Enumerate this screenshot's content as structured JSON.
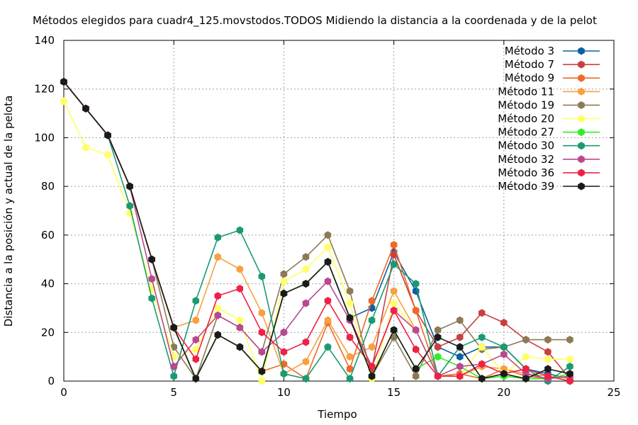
{
  "chart_data": {
    "type": "line",
    "title": "Métodos elegidos para cuadr4_125.movstodos.TODOS Midiendo la distancia a la coordenada y de la pelot",
    "xlabel": "Tiempo",
    "ylabel": "Distancia a la posición y actual de la pelota",
    "xlim": [
      0,
      25
    ],
    "ylim": [
      0,
      140
    ],
    "xticks": [
      0,
      5,
      10,
      15,
      20,
      25
    ],
    "yticks": [
      0,
      20,
      40,
      60,
      80,
      100,
      120,
      140
    ],
    "grid": true,
    "legend_position": "top-right",
    "x": [
      0,
      1,
      2,
      3,
      4,
      5,
      6,
      7,
      8,
      9,
      10,
      11,
      12,
      13,
      14,
      15,
      16,
      17,
      18,
      19,
      20,
      21,
      22,
      23
    ],
    "series": [
      {
        "name": "Método 3",
        "color": "#0b5fa5",
        "values": [
          123,
          112,
          101,
          80,
          50,
          22,
          1,
          19,
          14,
          4,
          36,
          40,
          49,
          26,
          30,
          53,
          37,
          14,
          10,
          14,
          14,
          5,
          3,
          1
        ]
      },
      {
        "name": "Método 7",
        "color": "#c84040",
        "values": [
          123,
          112,
          101,
          80,
          50,
          22,
          1,
          19,
          14,
          4,
          36,
          40,
          49,
          26,
          5,
          52,
          29,
          14,
          18,
          28,
          24,
          17,
          12,
          1
        ]
      },
      {
        "name": "Método 9",
        "color": "#ee6a28",
        "values": [
          123,
          112,
          101,
          80,
          50,
          22,
          1,
          19,
          14,
          4,
          7,
          1,
          24,
          5,
          33,
          56,
          29,
          2,
          3,
          1,
          5,
          2,
          1,
          2
        ]
      },
      {
        "name": "Método 11",
        "color": "#f7a040",
        "values": [
          123,
          112,
          101,
          80,
          50,
          22,
          25,
          51,
          46,
          28,
          3,
          8,
          25,
          10,
          14,
          37,
          21,
          2,
          2,
          6,
          5,
          3,
          2,
          1
        ]
      },
      {
        "name": "Método 19",
        "color": "#8c7a55",
        "values": [
          123,
          112,
          101,
          80,
          50,
          14,
          1,
          27,
          22,
          12,
          44,
          51,
          60,
          37,
          2,
          18,
          2,
          21,
          25,
          13,
          14,
          17,
          17,
          17
        ]
      },
      {
        "name": "Método 20",
        "color": "#ffff66",
        "values": [
          115,
          96,
          93,
          69,
          38,
          10,
          13,
          30,
          25,
          0,
          41,
          46,
          55,
          32,
          1,
          32,
          21,
          2,
          2,
          14,
          3,
          10,
          9,
          9
        ]
      },
      {
        "name": "Método 27",
        "color": "#33ee22",
        "values": [
          123,
          112,
          101,
          80,
          50,
          22,
          1,
          19,
          14,
          4,
          36,
          40,
          49,
          26,
          2,
          21,
          5,
          10,
          6,
          1,
          2,
          1,
          1,
          3
        ]
      },
      {
        "name": "Método 30",
        "color": "#1a9a70",
        "values": [
          123,
          112,
          101,
          72,
          34,
          2,
          33,
          59,
          62,
          43,
          3,
          1,
          14,
          1,
          25,
          48,
          40,
          2,
          14,
          18,
          14,
          5,
          0,
          6
        ]
      },
      {
        "name": "Método 32",
        "color": "#b84890",
        "values": [
          123,
          112,
          101,
          80,
          42,
          6,
          17,
          27,
          22,
          12,
          20,
          32,
          41,
          25,
          6,
          29,
          21,
          2,
          6,
          7,
          11,
          3,
          1,
          2
        ]
      },
      {
        "name": "Método 36",
        "color": "#ee2244",
        "values": [
          123,
          112,
          101,
          80,
          50,
          22,
          9,
          35,
          38,
          20,
          12,
          16,
          33,
          18,
          6,
          29,
          13,
          2,
          2,
          7,
          3,
          5,
          2,
          0
        ]
      },
      {
        "name": "Método 39",
        "color": "#1a1a1a",
        "values": [
          123,
          112,
          101,
          80,
          50,
          22,
          1,
          19,
          14,
          4,
          36,
          40,
          49,
          26,
          2,
          21,
          5,
          18,
          14,
          1,
          3,
          1,
          5,
          3
        ]
      }
    ]
  }
}
